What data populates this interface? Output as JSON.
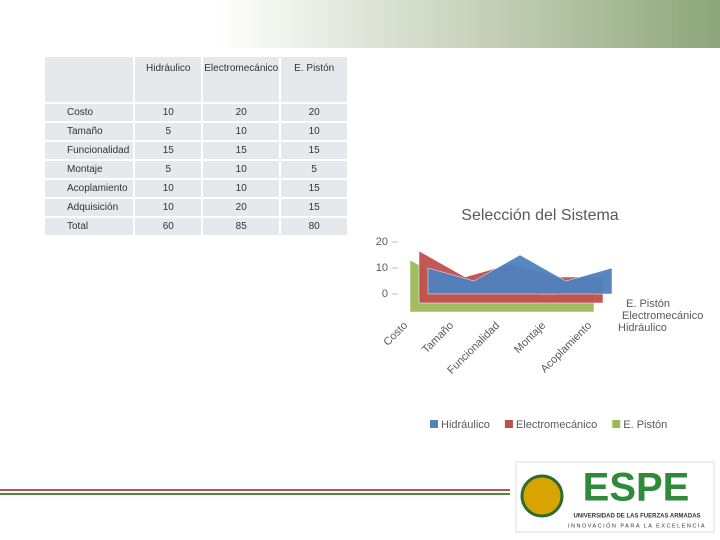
{
  "table": {
    "header": [
      "Hidráulico",
      "Electromecánico",
      "E. Pistón"
    ],
    "rows": [
      [
        "Costo",
        "10",
        "20",
        "20"
      ],
      [
        "Tamaño",
        "5",
        "10",
        "10"
      ],
      [
        "Funcionalidad",
        "15",
        "15",
        "15"
      ],
      [
        "Montaje",
        "5",
        "10",
        "5"
      ],
      [
        "Acoplamiento",
        "10",
        "10",
        "15"
      ],
      [
        "Adquisición",
        "10",
        "20",
        "15"
      ],
      [
        "Total",
        "60",
        "85",
        "80"
      ]
    ]
  },
  "chart_data": {
    "type": "area3d",
    "title": "Selección del Sistema",
    "categories": [
      "Costo",
      "Tamaño",
      "Funcionalidad",
      "Montaje",
      "Acoplamiento"
    ],
    "series": [
      {
        "name": "Hidráulico",
        "color": "#4f81bd",
        "values": [
          10,
          5,
          15,
          5,
          10
        ]
      },
      {
        "name": "Electromecánico",
        "color": "#c0504d",
        "values": [
          20,
          10,
          15,
          10,
          10
        ]
      },
      {
        "name": "E. Pistón",
        "color": "#9bbb59",
        "values": [
          20,
          10,
          15,
          5,
          15
        ]
      }
    ],
    "ylim": [
      0,
      20
    ],
    "yticks": [
      0,
      10,
      20
    ],
    "legend": "bottom"
  },
  "logo": {
    "name": "ESPE",
    "line1": "UNIVERSIDAD DE LAS FUERZAS ARMADAS",
    "line2": "INNOVACIÓN PARA LA EXCELENCIA"
  }
}
